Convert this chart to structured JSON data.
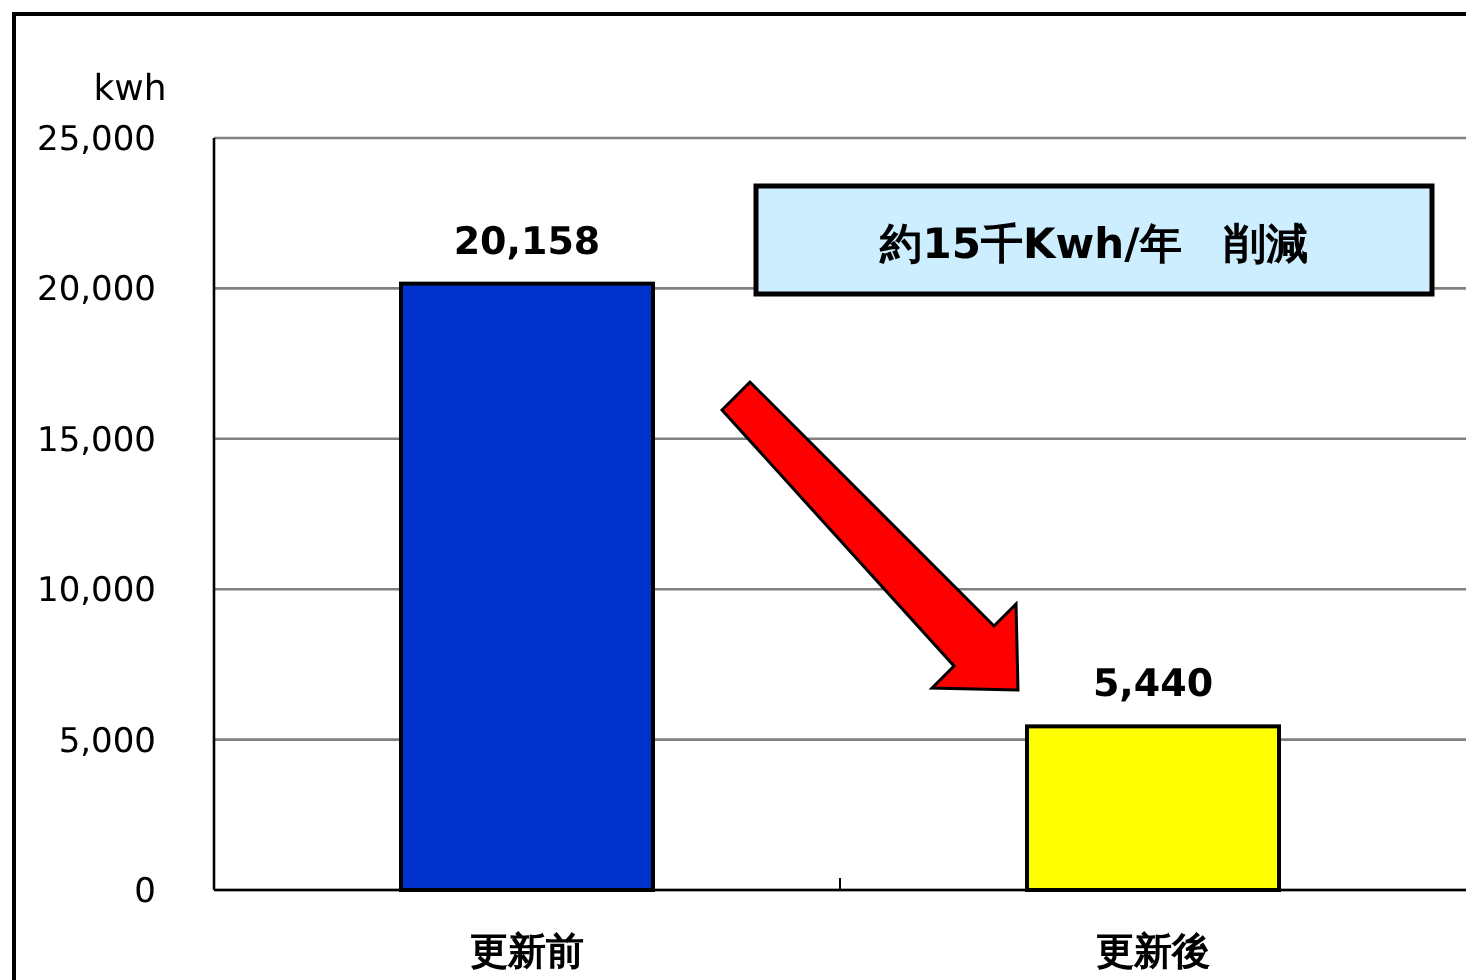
{
  "chart_data": {
    "type": "bar",
    "ylabel": "kwh",
    "categories": [
      "更新前",
      "更新後"
    ],
    "values": [
      20158,
      5440
    ],
    "colors": [
      "#0033cc",
      "#ffff00"
    ],
    "ylim": [
      0,
      25000
    ],
    "yticks": [
      {
        "value": 0,
        "label": "0"
      },
      {
        "value": 5000,
        "label": "5,000"
      },
      {
        "value": 10000,
        "label": "10,000"
      },
      {
        "value": 15000,
        "label": "15,000"
      },
      {
        "value": 20000,
        "label": "20,000"
      },
      {
        "value": 25000,
        "label": "25,000"
      }
    ],
    "grid": "y",
    "value_labels": [
      "20,158",
      "5,440"
    ],
    "annotations": [
      "約15千Kwh/年　削減"
    ]
  }
}
